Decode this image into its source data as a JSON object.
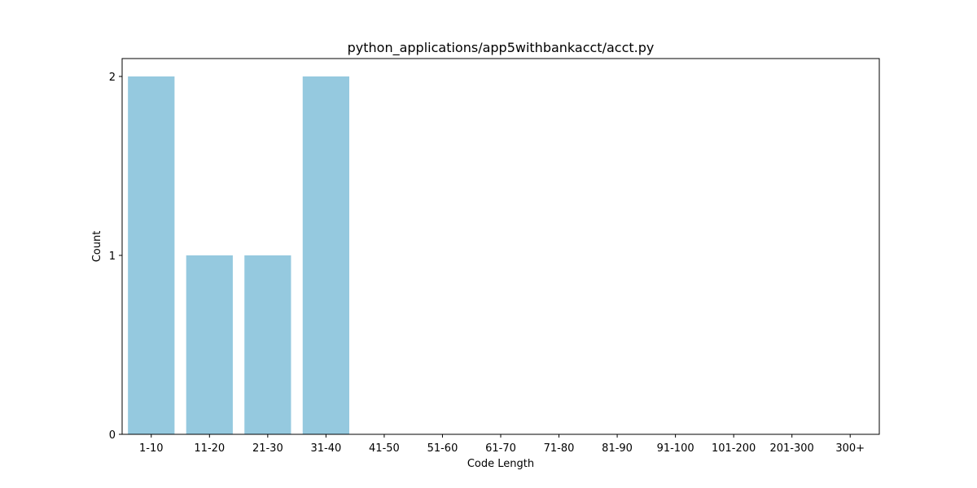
{
  "chart_data": {
    "type": "bar",
    "title": "python_applications/app5withbankacct/acct.py",
    "xlabel": "Code Length",
    "ylabel": "Count",
    "categories": [
      "1-10",
      "11-20",
      "21-30",
      "31-40",
      "41-50",
      "51-60",
      "61-70",
      "71-80",
      "81-90",
      "91-100",
      "101-200",
      "201-300",
      "300+"
    ],
    "values": [
      2,
      1,
      1,
      2,
      0,
      0,
      0,
      0,
      0,
      0,
      0,
      0,
      0
    ],
    "ylim": [
      0,
      2.1
    ],
    "yticks": [
      0,
      1,
      2
    ],
    "bar_color": "#95c9df",
    "grid": false,
    "legend": "none"
  }
}
